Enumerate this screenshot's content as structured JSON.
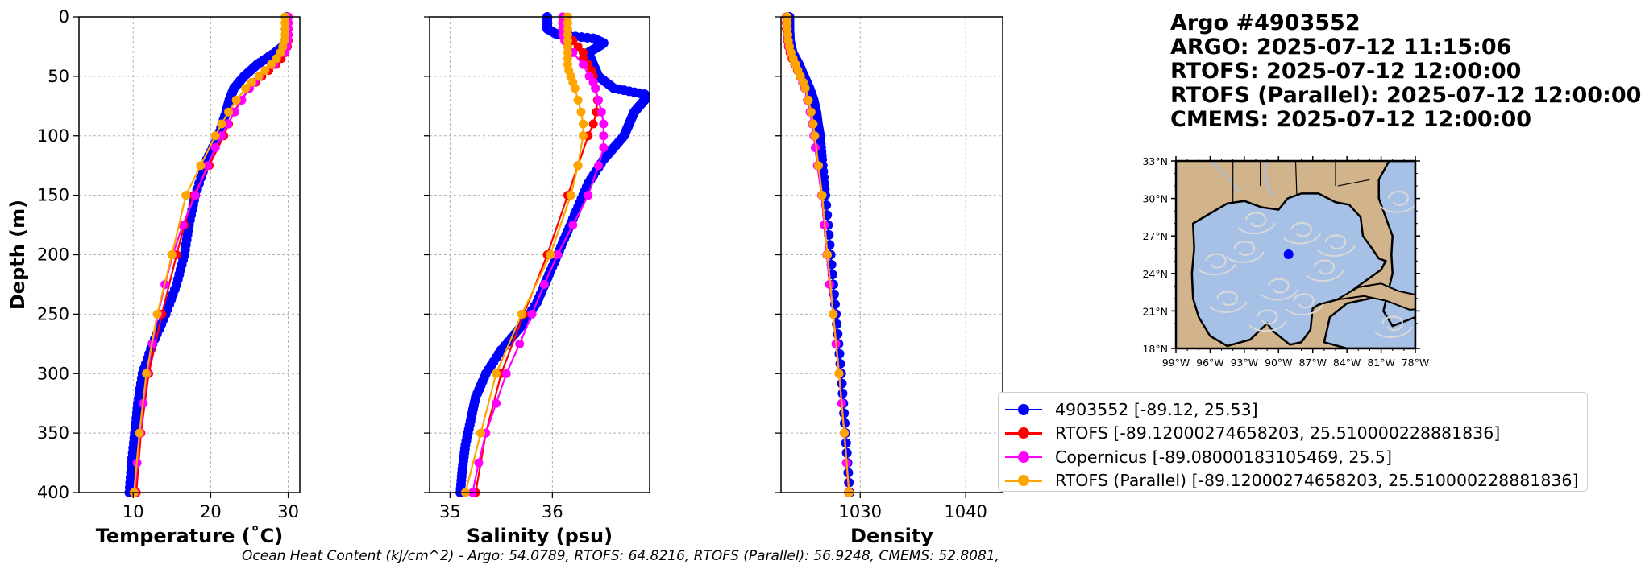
{
  "title_lines": [
    "Argo #4903552",
    "ARGO:  2025-07-12 11:15:06",
    "RTOFS: 2025-07-12 12:00:00",
    "RTOFS (Parallel): 2025-07-12 12:00:00",
    "CMEMS: 2025-07-12 12:00:00"
  ],
  "ohc_text": "Ocean Heat Content (kJ/cm^2) - Argo: 54.0789,  RTOFS: 64.8216,  RTOFS (Parallel): 56.9248,  CMEMS: 52.8081,",
  "legend": [
    {
      "label": "4903552 [-89.12, 25.53]",
      "color": "#0000ff"
    },
    {
      "label": "RTOFS [-89.12000274658203, 25.510000228881836]",
      "color": "#ff0000"
    },
    {
      "label": "Copernicus [-89.08000183105469, 25.5]",
      "color": "#ff00ff"
    },
    {
      "label": "RTOFS (Parallel) [-89.12000274658203, 25.510000228881836]",
      "color": "#ffa500"
    }
  ],
  "chart_data": [
    {
      "type": "line",
      "id": "temperature",
      "xlabel": "Temperature (˚C)",
      "ylabel": "Depth (m)",
      "xlim": [
        3,
        31.5
      ],
      "ylim": [
        400,
        0
      ],
      "xticks": [
        10,
        20,
        30
      ],
      "yticks": [
        0,
        50,
        100,
        150,
        200,
        250,
        300,
        350,
        400
      ],
      "grid": true,
      "series": [
        {
          "name": "4903552",
          "color": "#0000ff",
          "marker_size": 6,
          "line_width": 2,
          "dense": true,
          "depth": [
            0,
            10,
            20,
            25,
            30,
            40,
            50,
            60,
            70,
            80,
            100,
            120,
            150,
            175,
            200,
            225,
            250,
            275,
            300,
            325,
            350,
            375,
            400
          ],
          "values": [
            29.8,
            29.8,
            29.7,
            29.3,
            28.3,
            26.0,
            24.3,
            23.0,
            22.4,
            22.0,
            21.0,
            19.5,
            18.0,
            17.2,
            16.6,
            15.6,
            14.2,
            12.5,
            11.2,
            10.6,
            10.2,
            9.8,
            9.5
          ]
        },
        {
          "name": "RTOFS",
          "color": "#ff0000",
          "marker_size": 5.5,
          "line_width": 2.2,
          "depth": [
            0,
            5,
            10,
            15,
            20,
            25,
            30,
            35,
            40,
            45,
            50,
            55,
            60,
            70,
            80,
            90,
            100,
            125,
            150,
            175,
            200,
            250,
            300,
            350,
            400
          ],
          "values": [
            30.0,
            30.0,
            30.0,
            30.0,
            30.0,
            29.9,
            29.6,
            29.1,
            28.4,
            27.5,
            26.6,
            25.8,
            25.0,
            23.9,
            23.0,
            22.3,
            21.7,
            19.8,
            17.8,
            16.6,
            15.6,
            13.7,
            12.0,
            11.0,
            10.4
          ]
        },
        {
          "name": "Copernicus",
          "color": "#ff00ff",
          "marker_size": 5.5,
          "line_width": 2.2,
          "depth": [
            0,
            5,
            10,
            15,
            20,
            25,
            30,
            40,
            50,
            55,
            60,
            70,
            80,
            90,
            100,
            110,
            125,
            150,
            175,
            200,
            225,
            250,
            275,
            300,
            325,
            350,
            375,
            400
          ],
          "values": [
            30.0,
            30.0,
            30.0,
            30.0,
            29.9,
            29.8,
            29.5,
            28.2,
            26.3,
            25.6,
            25.0,
            24.0,
            23.1,
            22.2,
            21.4,
            20.6,
            19.6,
            18.0,
            16.4,
            15.1,
            14.1,
            13.2,
            12.5,
            11.8,
            11.3,
            10.9,
            10.5,
            10.2
          ]
        },
        {
          "name": "RTOFS (Parallel)",
          "color": "#ffa500",
          "marker_size": 5.5,
          "line_width": 2.2,
          "depth": [
            0,
            5,
            10,
            15,
            20,
            25,
            30,
            35,
            40,
            45,
            50,
            55,
            60,
            70,
            80,
            90,
            100,
            125,
            150,
            200,
            250,
            300,
            350,
            400
          ],
          "values": [
            29.6,
            29.6,
            29.6,
            29.6,
            29.5,
            29.3,
            29.0,
            28.5,
            27.8,
            27.0,
            26.2,
            25.3,
            24.5,
            23.3,
            22.3,
            21.4,
            20.6,
            18.7,
            16.8,
            15.0,
            13.1,
            11.7,
            10.8,
            10.1
          ]
        }
      ]
    },
    {
      "type": "line",
      "id": "salinity",
      "xlabel": "Salinity (psu)",
      "xlim": [
        34.8,
        36.95
      ],
      "ylim": [
        400,
        0
      ],
      "xticks": [
        35,
        36
      ],
      "yticks": [
        0,
        50,
        100,
        150,
        200,
        250,
        300,
        350,
        400
      ],
      "grid": true,
      "series": [
        {
          "name": "4903552",
          "color": "#0000ff",
          "marker_size": 6,
          "line_width": 2,
          "dense": true,
          "depth": [
            0,
            10,
            15,
            18,
            20,
            22,
            25,
            30,
            40,
            50,
            60,
            65,
            70,
            75,
            80,
            90,
            100,
            110,
            120,
            140,
            160,
            180,
            200,
            220,
            240,
            260,
            280,
            300,
            320,
            340,
            360,
            380,
            400
          ],
          "values": [
            35.95,
            35.95,
            36.05,
            36.4,
            36.45,
            36.5,
            36.45,
            36.35,
            36.4,
            36.45,
            36.6,
            36.9,
            36.9,
            36.85,
            36.8,
            36.75,
            36.7,
            36.6,
            36.5,
            36.35,
            36.25,
            36.15,
            36.05,
            35.95,
            35.85,
            35.7,
            35.5,
            35.35,
            35.25,
            35.2,
            35.15,
            35.12,
            35.1
          ]
        },
        {
          "name": "RTOFS",
          "color": "#ff0000",
          "marker_size": 5.5,
          "line_width": 2.2,
          "depth": [
            0,
            5,
            10,
            15,
            20,
            25,
            30,
            35,
            40,
            45,
            50,
            55,
            60,
            70,
            80,
            90,
            100,
            125,
            150,
            200,
            250,
            300,
            350,
            400
          ],
          "values": [
            36.1,
            36.1,
            36.1,
            36.15,
            36.2,
            36.25,
            36.3,
            36.3,
            36.35,
            36.38,
            36.4,
            36.4,
            36.42,
            36.44,
            36.43,
            36.4,
            36.35,
            36.25,
            36.15,
            35.95,
            35.72,
            35.5,
            35.35,
            35.25
          ]
        },
        {
          "name": "Copernicus",
          "color": "#ff00ff",
          "marker_size": 5.5,
          "line_width": 2.2,
          "depth": [
            0,
            5,
            10,
            15,
            20,
            25,
            30,
            40,
            50,
            55,
            60,
            70,
            80,
            90,
            100,
            110,
            125,
            150,
            175,
            200,
            225,
            250,
            275,
            300,
            325,
            350,
            375,
            400
          ],
          "values": [
            36.1,
            36.1,
            36.1,
            36.1,
            36.12,
            36.15,
            36.2,
            36.3,
            36.36,
            36.4,
            36.42,
            36.45,
            36.48,
            36.5,
            36.5,
            36.5,
            36.45,
            36.35,
            36.2,
            36.05,
            35.92,
            35.8,
            35.68,
            35.55,
            35.45,
            35.35,
            35.28,
            35.22
          ]
        },
        {
          "name": "RTOFS (Parallel)",
          "color": "#ffa500",
          "marker_size": 5.5,
          "line_width": 2.2,
          "depth": [
            0,
            5,
            10,
            15,
            20,
            25,
            30,
            35,
            40,
            45,
            50,
            55,
            60,
            70,
            80,
            90,
            100,
            125,
            150,
            200,
            250,
            300,
            350,
            400
          ],
          "values": [
            36.15,
            36.15,
            36.15,
            36.15,
            36.15,
            36.15,
            36.15,
            36.15,
            36.15,
            36.16,
            36.18,
            36.2,
            36.22,
            36.25,
            36.28,
            36.3,
            36.3,
            36.25,
            36.18,
            35.98,
            35.7,
            35.45,
            35.3,
            35.15
          ]
        }
      ]
    },
    {
      "type": "line",
      "id": "density",
      "xlabel": "Density",
      "xlim": [
        1022.5,
        1043.5
      ],
      "ylim": [
        400,
        0
      ],
      "xticks": [
        1030,
        1040
      ],
      "yticks": [
        0,
        50,
        100,
        150,
        200,
        250,
        300,
        350,
        400
      ],
      "grid": true,
      "series": [
        {
          "name": "4903552",
          "color": "#0000ff",
          "marker_size": 6,
          "line_width": 2,
          "dense": true,
          "depth": [
            0,
            10,
            20,
            30,
            40,
            50,
            60,
            70,
            80,
            90,
            100,
            120,
            150,
            200,
            250,
            300,
            350,
            400
          ],
          "values": [
            1023.3,
            1023.3,
            1023.35,
            1023.6,
            1024.2,
            1024.7,
            1025.2,
            1025.6,
            1025.85,
            1026.0,
            1026.2,
            1026.4,
            1026.7,
            1027.2,
            1027.7,
            1028.2,
            1028.6,
            1029.0
          ]
        },
        {
          "name": "RTOFS",
          "color": "#ff0000",
          "marker_size": 5.5,
          "line_width": 2.2,
          "depth": [
            0,
            5,
            10,
            15,
            20,
            25,
            30,
            35,
            40,
            45,
            50,
            55,
            60,
            70,
            80,
            90,
            100,
            125,
            150,
            200,
            250,
            300,
            350,
            400
          ],
          "values": [
            1023.0,
            1023.0,
            1023.0,
            1023.05,
            1023.1,
            1023.2,
            1023.35,
            1023.55,
            1023.8,
            1024.05,
            1024.3,
            1024.55,
            1024.75,
            1025.05,
            1025.3,
            1025.5,
            1025.65,
            1026.0,
            1026.35,
            1026.85,
            1027.45,
            1028.0,
            1028.5,
            1028.9
          ]
        },
        {
          "name": "Copernicus",
          "color": "#ff00ff",
          "marker_size": 5.5,
          "line_width": 2.2,
          "depth": [
            0,
            5,
            10,
            15,
            20,
            25,
            30,
            40,
            50,
            55,
            60,
            70,
            80,
            90,
            100,
            110,
            125,
            150,
            175,
            200,
            225,
            250,
            275,
            300,
            325,
            350,
            375,
            400
          ],
          "values": [
            1023.05,
            1023.05,
            1023.05,
            1023.1,
            1023.15,
            1023.25,
            1023.4,
            1023.85,
            1024.35,
            1024.55,
            1024.75,
            1025.0,
            1025.25,
            1025.45,
            1025.6,
            1025.75,
            1025.95,
            1026.35,
            1026.6,
            1026.85,
            1027.1,
            1027.45,
            1027.7,
            1028.0,
            1028.25,
            1028.5,
            1028.7,
            1028.95
          ]
        },
        {
          "name": "RTOFS (Parallel)",
          "color": "#ffa500",
          "marker_size": 5.5,
          "line_width": 2.2,
          "depth": [
            0,
            5,
            10,
            15,
            20,
            25,
            30,
            35,
            40,
            45,
            50,
            55,
            60,
            70,
            80,
            90,
            100,
            125,
            150,
            200,
            250,
            300,
            350,
            400
          ],
          "values": [
            1023.1,
            1023.1,
            1023.1,
            1023.15,
            1023.2,
            1023.3,
            1023.45,
            1023.65,
            1023.9,
            1024.1,
            1024.35,
            1024.6,
            1024.8,
            1025.1,
            1025.35,
            1025.55,
            1025.7,
            1026.05,
            1026.4,
            1026.9,
            1027.45,
            1028.0,
            1028.5,
            1028.95
          ]
        }
      ]
    }
  ],
  "inset_map": {
    "lat_labels": [
      "33°N",
      "30°N",
      "27°N",
      "24°N",
      "21°N",
      "18°N"
    ],
    "lon_labels": [
      "99°W",
      "96°W",
      "93°W",
      "90°W",
      "87°W",
      "84°W",
      "81°W",
      "78°W"
    ],
    "lon_range": [
      -99,
      -78
    ],
    "lat_range": [
      18,
      33
    ],
    "float_position": {
      "lon": -89.12,
      "lat": 25.53,
      "color": "#0000ff"
    },
    "land_color": "#d2b48c",
    "ocean_color": "#a7c0e6",
    "streamline_color": "#d8d8d8"
  }
}
